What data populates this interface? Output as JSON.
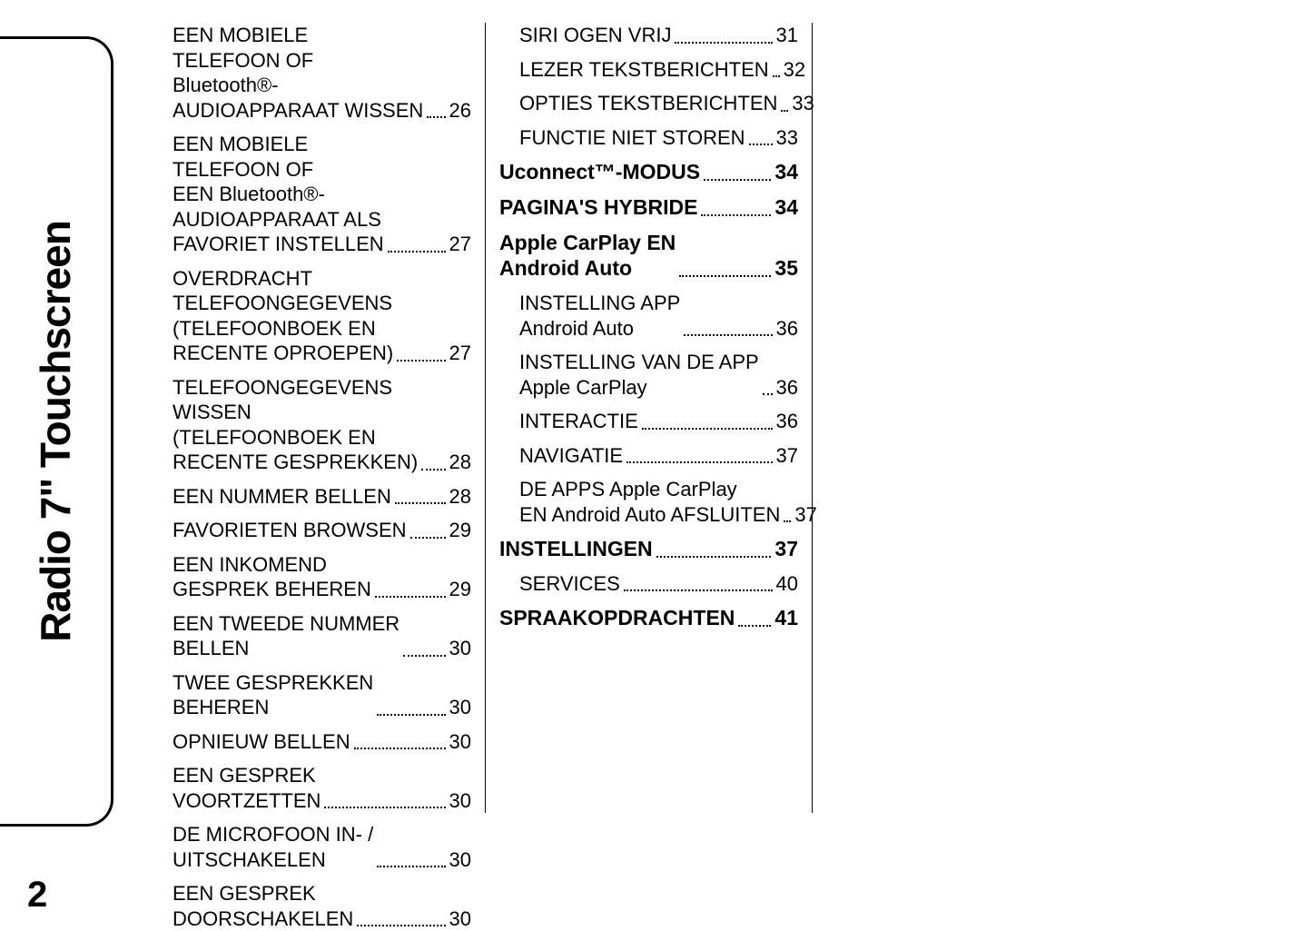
{
  "colors": {
    "background": "#ffffff",
    "text": "#000000",
    "border": "#000000"
  },
  "typography": {
    "normal_fontsize": 22,
    "bold_fontsize": 23,
    "sidebar_fontsize": 46,
    "pagenum_fontsize": 40
  },
  "sidebar_title": "Radio 7\" Touchscreen",
  "page_number": "2",
  "toc": {
    "col1": [
      {
        "label": [
          "EEN MOBIELE",
          "TELEFOON OF",
          "Bluetooth®-",
          "AUDIOAPPARAAT WISSEN"
        ],
        "page": "26",
        "style": "normal",
        "sub": false
      },
      {
        "label": [
          "EEN MOBIELE",
          "TELEFOON OF",
          "EEN Bluetooth®-",
          "AUDIOAPPARAAT ALS",
          "FAVORIET INSTELLEN"
        ],
        "page": "27",
        "style": "normal",
        "sub": false
      },
      {
        "label": [
          "OVERDRACHT",
          "TELEFOONGEGEVENS",
          "(TELEFOONBOEK EN",
          "RECENTE OPROEPEN)"
        ],
        "page": "27",
        "style": "normal",
        "sub": false
      },
      {
        "label": [
          "TELEFOONGEGEVENS",
          "WISSEN",
          "(TELEFOONBOEK EN",
          "RECENTE GESPREKKEN)"
        ],
        "page": "28",
        "style": "normal",
        "sub": false
      },
      {
        "label": [
          "EEN NUMMER BELLEN"
        ],
        "page": "28",
        "style": "normal",
        "sub": false
      },
      {
        "label": [
          "FAVORIETEN BROWSEN"
        ],
        "page": "29",
        "style": "normal",
        "sub": false
      },
      {
        "label": [
          "EEN INKOMEND",
          "GESPREK BEHEREN"
        ],
        "page": "29",
        "style": "normal",
        "sub": false
      },
      {
        "label": [
          "EEN TWEEDE NUMMER",
          "BELLEN"
        ],
        "page": "30",
        "style": "normal",
        "sub": false
      },
      {
        "label": [
          "TWEE GESPREKKEN",
          "BEHEREN"
        ],
        "page": "30",
        "style": "normal",
        "sub": false
      },
      {
        "label": [
          "OPNIEUW BELLEN"
        ],
        "page": "30",
        "style": "normal",
        "sub": false
      },
      {
        "label": [
          "EEN GESPREK",
          "VOORTZETTEN"
        ],
        "page": "30",
        "style": "normal",
        "sub": false
      },
      {
        "label": [
          "DE MICROFOON IN- /",
          "UITSCHAKELEN"
        ],
        "page": "30",
        "style": "normal",
        "sub": false
      },
      {
        "label": [
          "EEN GESPREK",
          "DOORSCHAKELEN"
        ],
        "page": "30",
        "style": "normal",
        "sub": false
      }
    ],
    "col2": [
      {
        "label": [
          "SIRI OGEN VRIJ"
        ],
        "page": "31",
        "style": "normal",
        "sub": true
      },
      {
        "label": [
          "LEZER TEKSTBERICHTEN"
        ],
        "page": "32",
        "style": "normal",
        "sub": true
      },
      {
        "label": [
          "OPTIES TEKSTBERICHTEN"
        ],
        "page": "33",
        "style": "normal",
        "sub": true
      },
      {
        "label": [
          "FUNCTIE NIET STOREN"
        ],
        "page": "33",
        "style": "normal",
        "sub": true
      },
      {
        "label": [
          "Uconnect™-MODUS"
        ],
        "page": "34",
        "style": "bold",
        "sub": false
      },
      {
        "label": [
          "PAGINA'S HYBRIDE"
        ],
        "page": "34",
        "style": "bold",
        "sub": false
      },
      {
        "label": [
          "Apple CarPlay EN",
          "Android Auto"
        ],
        "page": "35",
        "style": "bold",
        "sub": false
      },
      {
        "label": [
          "INSTELLING APP",
          "Android Auto"
        ],
        "page": "36",
        "style": "normal",
        "sub": true
      },
      {
        "label": [
          "INSTELLING VAN DE APP",
          "Apple CarPlay"
        ],
        "page": "36",
        "style": "normal",
        "sub": true
      },
      {
        "label": [
          "INTERACTIE"
        ],
        "page": "36",
        "style": "normal",
        "sub": true
      },
      {
        "label": [
          "NAVIGATIE"
        ],
        "page": "37",
        "style": "normal",
        "sub": true
      },
      {
        "label": [
          "DE APPS Apple CarPlay",
          "EN Android Auto AFSLUITEN"
        ],
        "page": "37",
        "style": "normal",
        "sub": true
      },
      {
        "label": [
          "INSTELLINGEN"
        ],
        "page": "37",
        "style": "bold",
        "sub": false
      },
      {
        "label": [
          "SERVICES"
        ],
        "page": "40",
        "style": "normal",
        "sub": true
      },
      {
        "label": [
          "SPRAAKOPDRACHTEN"
        ],
        "page": "41",
        "style": "bold",
        "sub": false
      }
    ]
  }
}
